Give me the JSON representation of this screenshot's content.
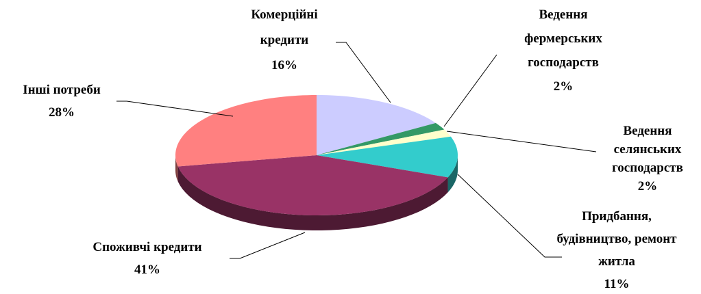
{
  "chart_data": {
    "type": "pie",
    "categories": [
      "Комерційні кредити",
      "Ведення фермерських господарств",
      "Ведення селянських господарств",
      "Придбання, будівництво, ремонт житла",
      "Споживчі кредити",
      "Інші потреби"
    ],
    "values": [
      16,
      2,
      2,
      11,
      41,
      28
    ],
    "value_labels": [
      "16%",
      "2%",
      "2%",
      "11%",
      "41%",
      "28%"
    ],
    "colors": [
      "#ccccff",
      "#339966",
      "#ffffcc",
      "#33cccc",
      "#993366",
      "#ff8080"
    ]
  }
}
